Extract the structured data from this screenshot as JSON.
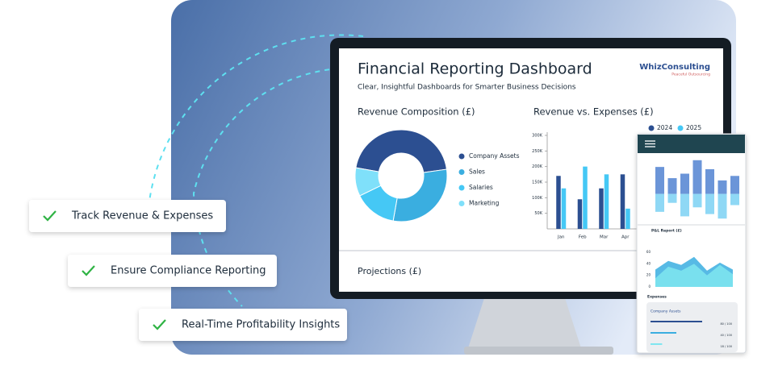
{
  "callouts": [
    "Track Revenue & Expenses",
    "Ensure Compliance Reporting",
    "Real-Time Profitability Insights"
  ],
  "dashboard": {
    "title": "Financial Reporting Dashboard",
    "subtitle": "Clear, Insightful Dashboards for Smarter Business Decisions",
    "logo": {
      "name": "WhizConsulting",
      "tagline": "Peaceful Outsourcing"
    },
    "projections_label": "Projections (£)"
  },
  "chart_data": [
    {
      "type": "donut",
      "title": "Revenue Composition (£)",
      "categories": [
        "Company Assets",
        "Sales",
        "Salaries",
        "Marketing"
      ],
      "values": [
        45,
        30,
        15,
        10
      ],
      "colors": [
        "#2c4f91",
        "#3aaee0",
        "#45c8f5",
        "#7fe0fa"
      ]
    },
    {
      "type": "bar",
      "title": "Revenue vs. Expenses (£)",
      "categories": [
        "Jan",
        "Feb",
        "Mar",
        "Apr"
      ],
      "series": [
        {
          "name": "2024",
          "color": "#2c4f91",
          "values": [
            170000,
            95000,
            130000,
            175000
          ]
        },
        {
          "name": "2025",
          "color": "#45c8f5",
          "values": [
            130000,
            200000,
            175000,
            65000
          ]
        }
      ],
      "ylim": [
        0,
        300000
      ],
      "yticks": [
        {
          "value": 50000,
          "label": "50K"
        },
        {
          "value": 100000,
          "label": "100K"
        },
        {
          "value": 150000,
          "label": "150K"
        },
        {
          "value": 200000,
          "label": "200K"
        },
        {
          "value": 250000,
          "label": "250K"
        },
        {
          "value": 300000,
          "label": "300K"
        }
      ]
    },
    {
      "type": "diverging-bar",
      "series": [
        {
          "color": "#6b95d8",
          "values": [
            60,
            35,
            45,
            75,
            55,
            30,
            40
          ]
        },
        {
          "color": "#8fd8f5",
          "values": [
            -40,
            -20,
            -50,
            -30,
            -45,
            -55,
            -25
          ]
        }
      ],
      "ylim": [
        -60,
        80
      ]
    },
    {
      "type": "area",
      "title": "P&L Report (£)",
      "series": [
        {
          "color": "#3aaee0",
          "values": [
            30,
            45,
            38,
            52,
            28,
            42,
            30
          ]
        },
        {
          "color": "#7fe6f0",
          "values": [
            15,
            35,
            28,
            40,
            20,
            38,
            22
          ]
        }
      ],
      "ylim": [
        0,
        60
      ],
      "yticks": [
        0,
        20,
        40,
        60
      ]
    },
    {
      "type": "progress",
      "title": "Expenses",
      "subtitle": "Company Assets",
      "xlim": [
        0,
        100
      ],
      "values": [
        80,
        40,
        18
      ],
      "value_labels": [
        "80 / 100",
        "40 / 100",
        "18 / 100"
      ],
      "colors": [
        "#2c4f91",
        "#3aaee0",
        "#7fe6f0"
      ]
    }
  ]
}
